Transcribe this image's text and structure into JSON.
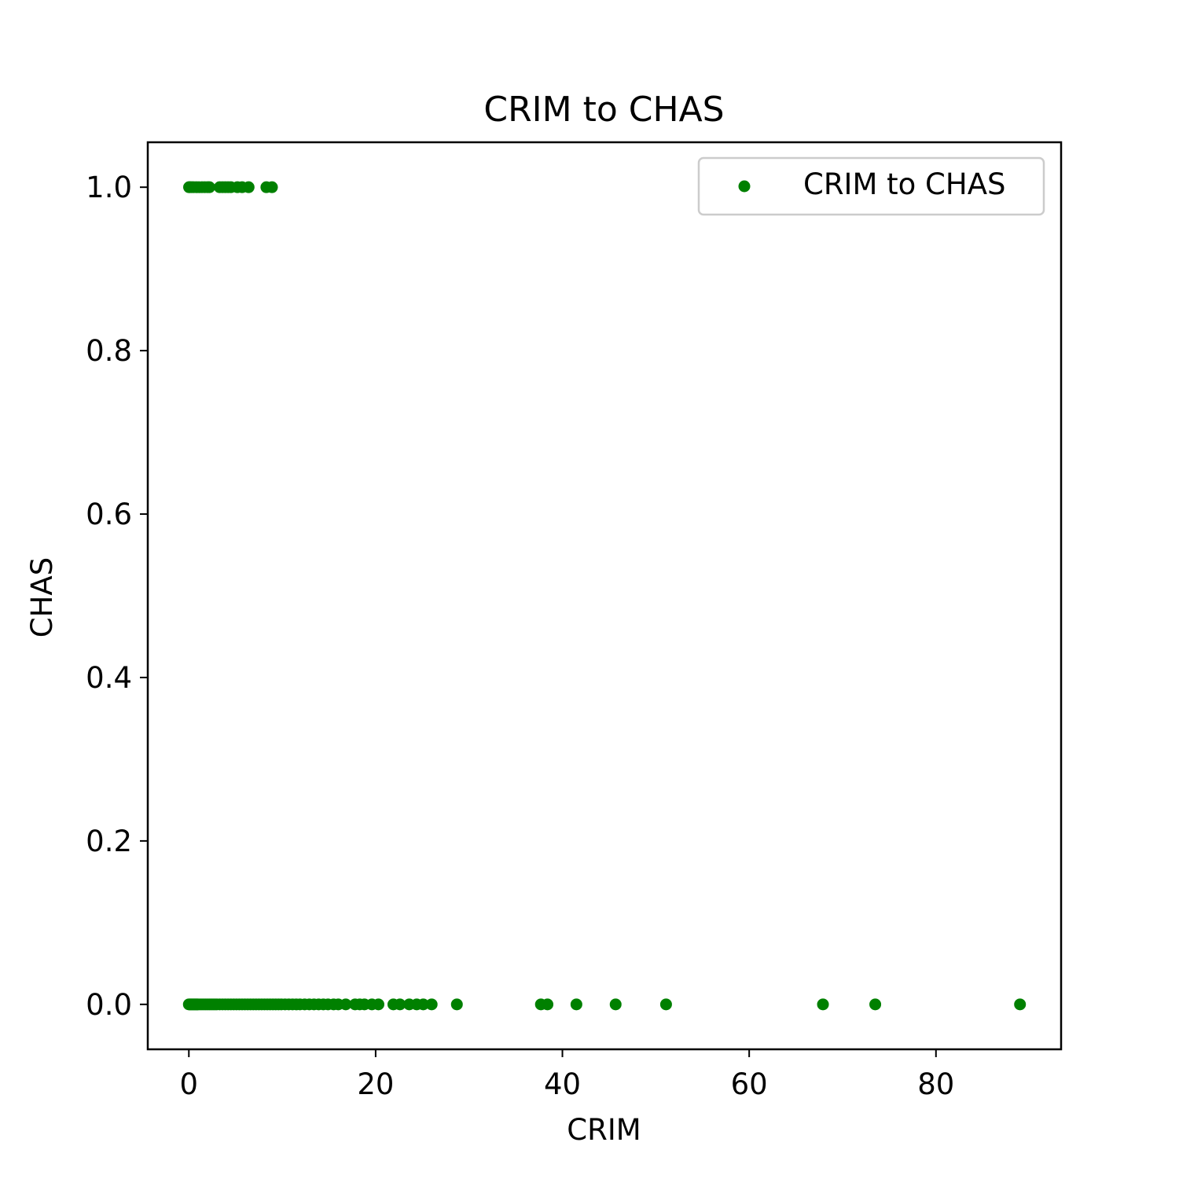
{
  "chart_data": {
    "type": "scatter",
    "title": "CRIM to CHAS",
    "xlabel": "CRIM",
    "ylabel": "CHAS",
    "xlim": [
      -4.4,
      93.4
    ],
    "ylim": [
      -0.055,
      1.055
    ],
    "xticks": [
      0,
      20,
      40,
      60,
      80
    ],
    "xtick_labels": [
      "0",
      "20",
      "40",
      "60",
      "80"
    ],
    "yticks": [
      0.0,
      0.2,
      0.4,
      0.6,
      0.8,
      1.0
    ],
    "ytick_labels": [
      "0.0",
      "0.2",
      "0.4",
      "0.6",
      "0.8",
      "1.0"
    ],
    "grid": false,
    "legend": {
      "position": "upper-right"
    },
    "series": [
      {
        "name": "CRIM to CHAS",
        "color": "#008000",
        "points": [
          [
            0.02,
            1
          ],
          [
            0.1,
            1
          ],
          [
            0.3,
            1
          ],
          [
            0.5,
            1
          ],
          [
            0.8,
            1
          ],
          [
            1.1,
            1
          ],
          [
            1.4,
            1
          ],
          [
            1.7,
            1
          ],
          [
            2.0,
            1
          ],
          [
            2.2,
            1
          ],
          [
            3.3,
            1
          ],
          [
            3.6,
            1
          ],
          [
            3.9,
            1
          ],
          [
            4.2,
            1
          ],
          [
            4.5,
            1
          ],
          [
            5.2,
            1
          ],
          [
            5.7,
            1
          ],
          [
            6.4,
            1
          ],
          [
            8.3,
            1
          ],
          [
            8.9,
            1
          ],
          [
            0.0,
            0
          ],
          [
            0.1,
            0
          ],
          [
            0.2,
            0
          ],
          [
            0.3,
            0
          ],
          [
            0.4,
            0
          ],
          [
            0.5,
            0
          ],
          [
            0.6,
            0
          ],
          [
            0.7,
            0
          ],
          [
            0.8,
            0
          ],
          [
            0.9,
            0
          ],
          [
            1.0,
            0
          ],
          [
            1.2,
            0
          ],
          [
            1.4,
            0
          ],
          [
            1.6,
            0
          ],
          [
            1.8,
            0
          ],
          [
            2.0,
            0
          ],
          [
            2.2,
            0
          ],
          [
            2.4,
            0
          ],
          [
            2.6,
            0
          ],
          [
            2.8,
            0
          ],
          [
            3.0,
            0
          ],
          [
            3.3,
            0
          ],
          [
            3.6,
            0
          ],
          [
            3.9,
            0
          ],
          [
            4.2,
            0
          ],
          [
            4.5,
            0
          ],
          [
            4.8,
            0
          ],
          [
            5.1,
            0
          ],
          [
            5.4,
            0
          ],
          [
            5.7,
            0
          ],
          [
            6.0,
            0
          ],
          [
            6.3,
            0
          ],
          [
            6.6,
            0
          ],
          [
            6.9,
            0
          ],
          [
            7.2,
            0
          ],
          [
            7.5,
            0
          ],
          [
            7.8,
            0
          ],
          [
            8.1,
            0
          ],
          [
            8.4,
            0
          ],
          [
            8.7,
            0
          ],
          [
            9.0,
            0
          ],
          [
            9.3,
            0
          ],
          [
            9.6,
            0
          ],
          [
            9.9,
            0
          ],
          [
            10.3,
            0
          ],
          [
            10.7,
            0
          ],
          [
            11.1,
            0
          ],
          [
            11.5,
            0
          ],
          [
            11.9,
            0
          ],
          [
            12.4,
            0
          ],
          [
            12.9,
            0
          ],
          [
            13.4,
            0
          ],
          [
            13.9,
            0
          ],
          [
            14.4,
            0
          ],
          [
            14.9,
            0
          ],
          [
            15.5,
            0
          ],
          [
            16.0,
            0
          ],
          [
            16.8,
            0
          ],
          [
            17.8,
            0
          ],
          [
            18.3,
            0
          ],
          [
            18.8,
            0
          ],
          [
            19.6,
            0
          ],
          [
            20.3,
            0
          ],
          [
            21.9,
            0
          ],
          [
            22.6,
            0
          ],
          [
            23.6,
            0
          ],
          [
            24.4,
            0
          ],
          [
            25.1,
            0
          ],
          [
            26.0,
            0
          ],
          [
            28.7,
            0
          ],
          [
            37.7,
            0
          ],
          [
            38.4,
            0
          ],
          [
            41.5,
            0
          ],
          [
            45.7,
            0
          ],
          [
            51.1,
            0
          ],
          [
            67.9,
            0
          ],
          [
            73.5,
            0
          ],
          [
            89.0,
            0
          ]
        ]
      }
    ]
  }
}
